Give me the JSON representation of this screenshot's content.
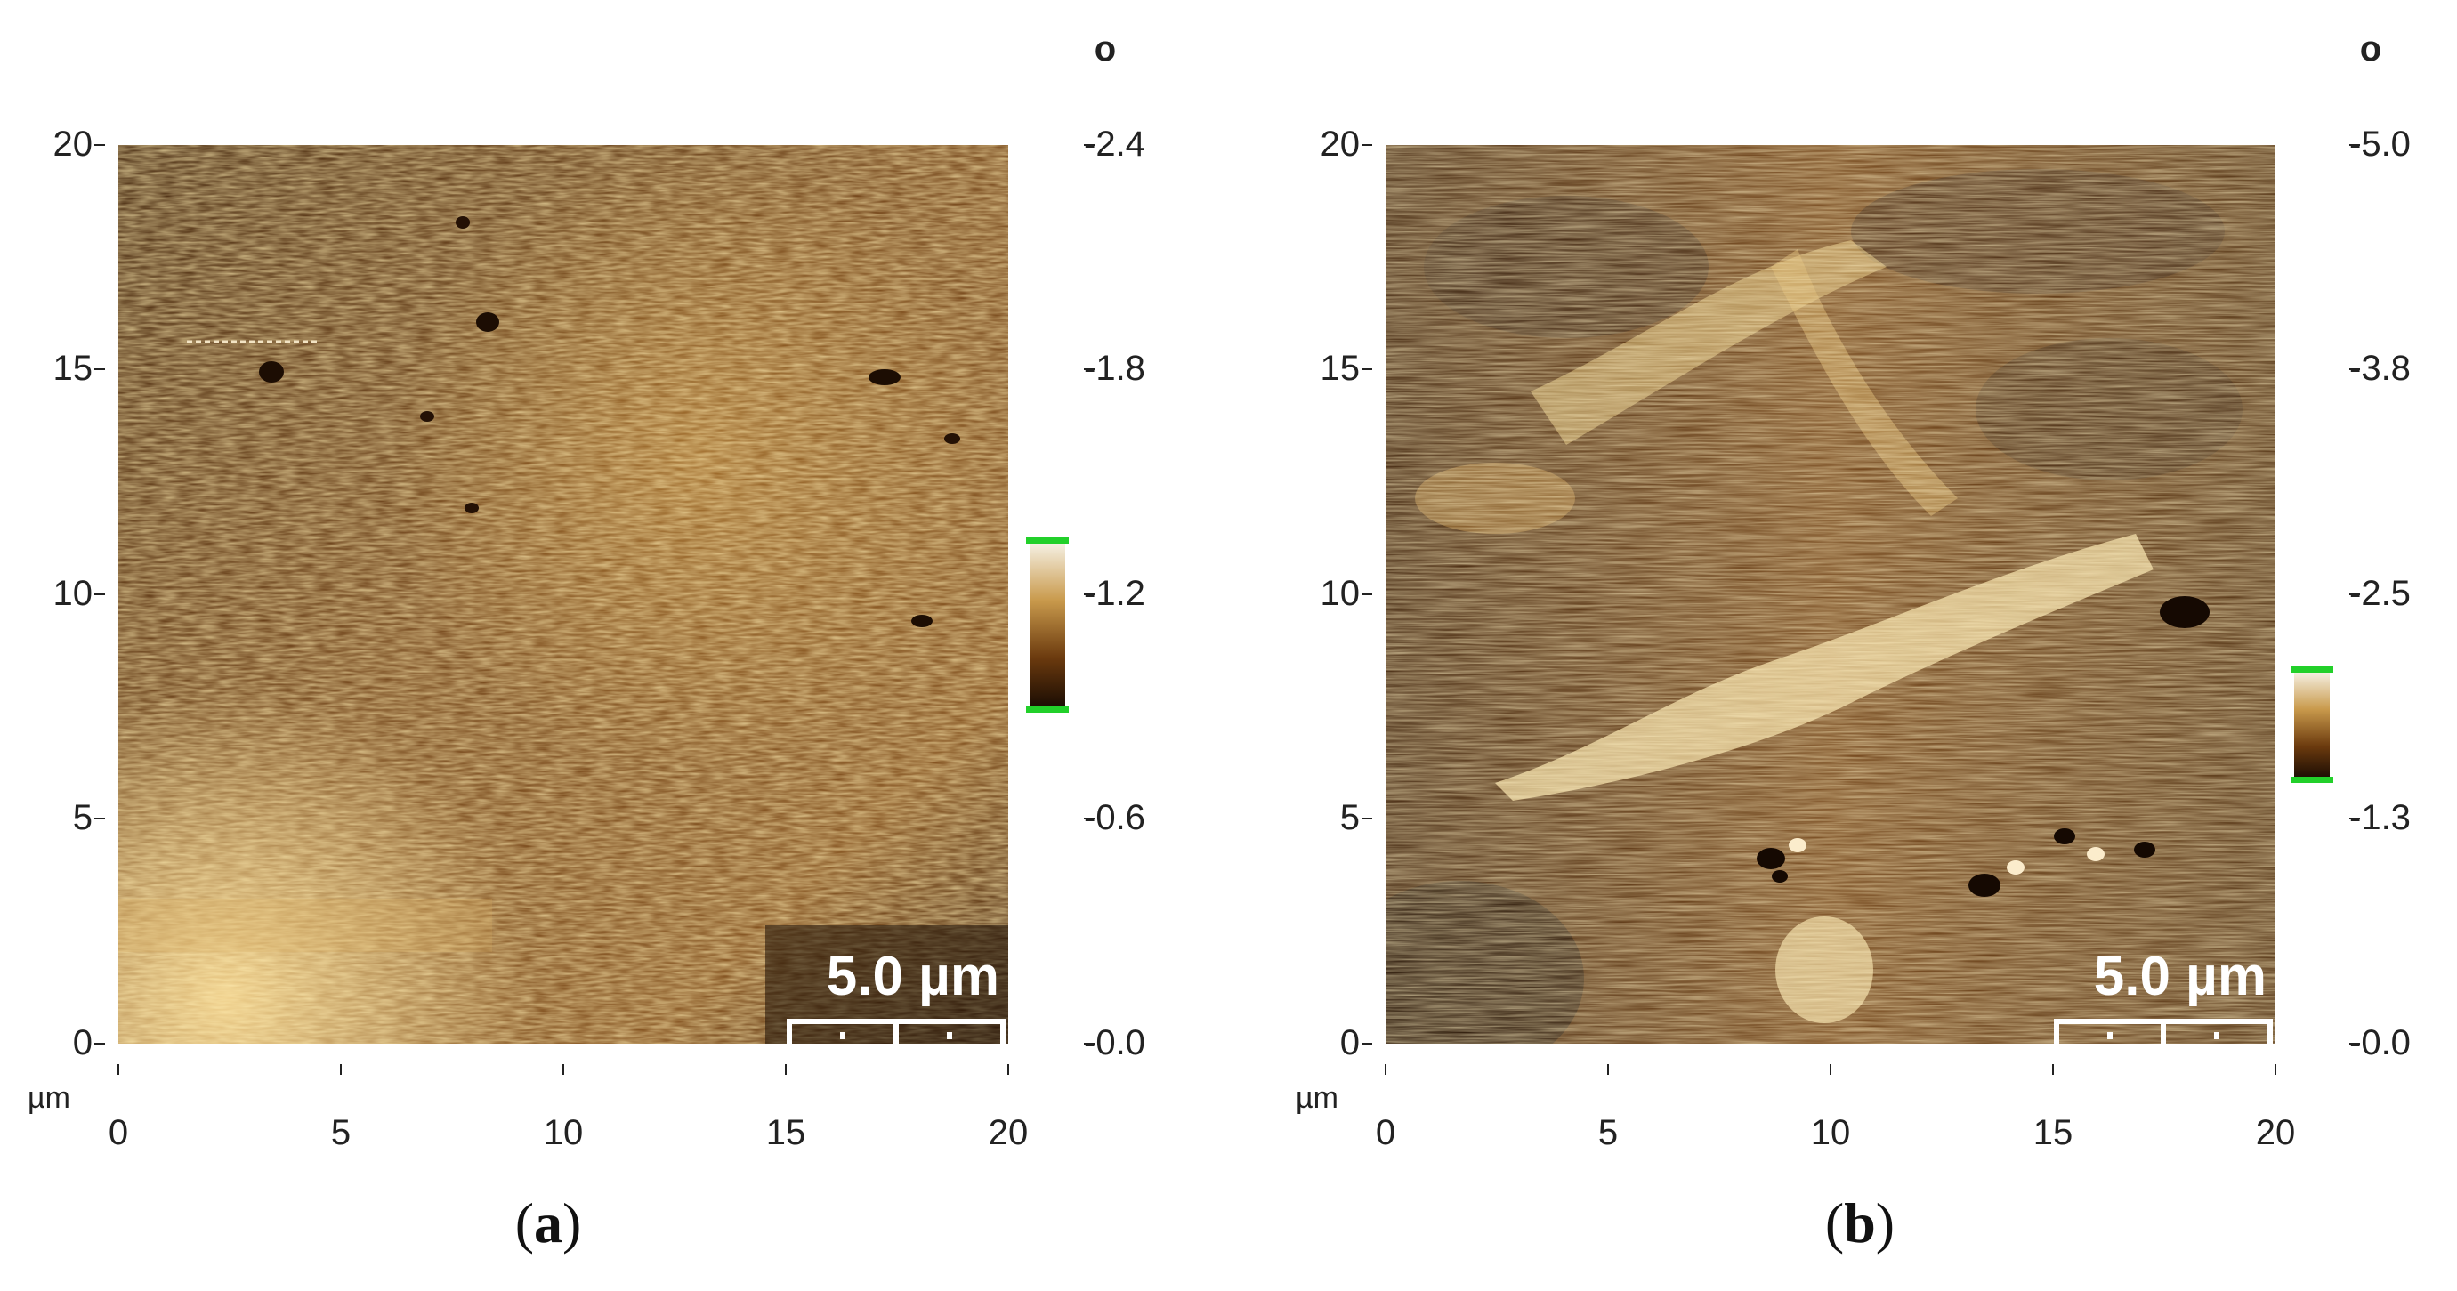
{
  "panels": [
    {
      "id": "a",
      "caption": "a",
      "unit_mark": "o",
      "xunit": "µm",
      "x_ticks": [
        "0",
        "5",
        "10",
        "15",
        "20"
      ],
      "y_ticks": [
        "0",
        "5",
        "10",
        "15",
        "20"
      ],
      "colorbar_ticks": [
        "-0.0",
        "-0.6",
        "-1.2",
        "-1.8",
        "-2.4"
      ],
      "scale_bar_label": "5.0 µm",
      "colors": {
        "dark": "#3a1f0a",
        "mid": "#7a4512",
        "light": "#d9a441"
      }
    },
    {
      "id": "b",
      "caption": "b",
      "unit_mark": "o",
      "xunit": "µm",
      "x_ticks": [
        "0",
        "5",
        "10",
        "15",
        "20"
      ],
      "y_ticks": [
        "0",
        "5",
        "10",
        "15",
        "20"
      ],
      "colorbar_ticks": [
        "-0.0",
        "-1.3",
        "-2.5",
        "-3.8",
        "-5.0"
      ],
      "scale_bar_label": "5.0 µm",
      "colors": {
        "dark": "#2a1406",
        "mid": "#6e3c0e",
        "light": "#f0d9a0"
      }
    }
  ],
  "colorbar_accent": "#22d02a"
}
